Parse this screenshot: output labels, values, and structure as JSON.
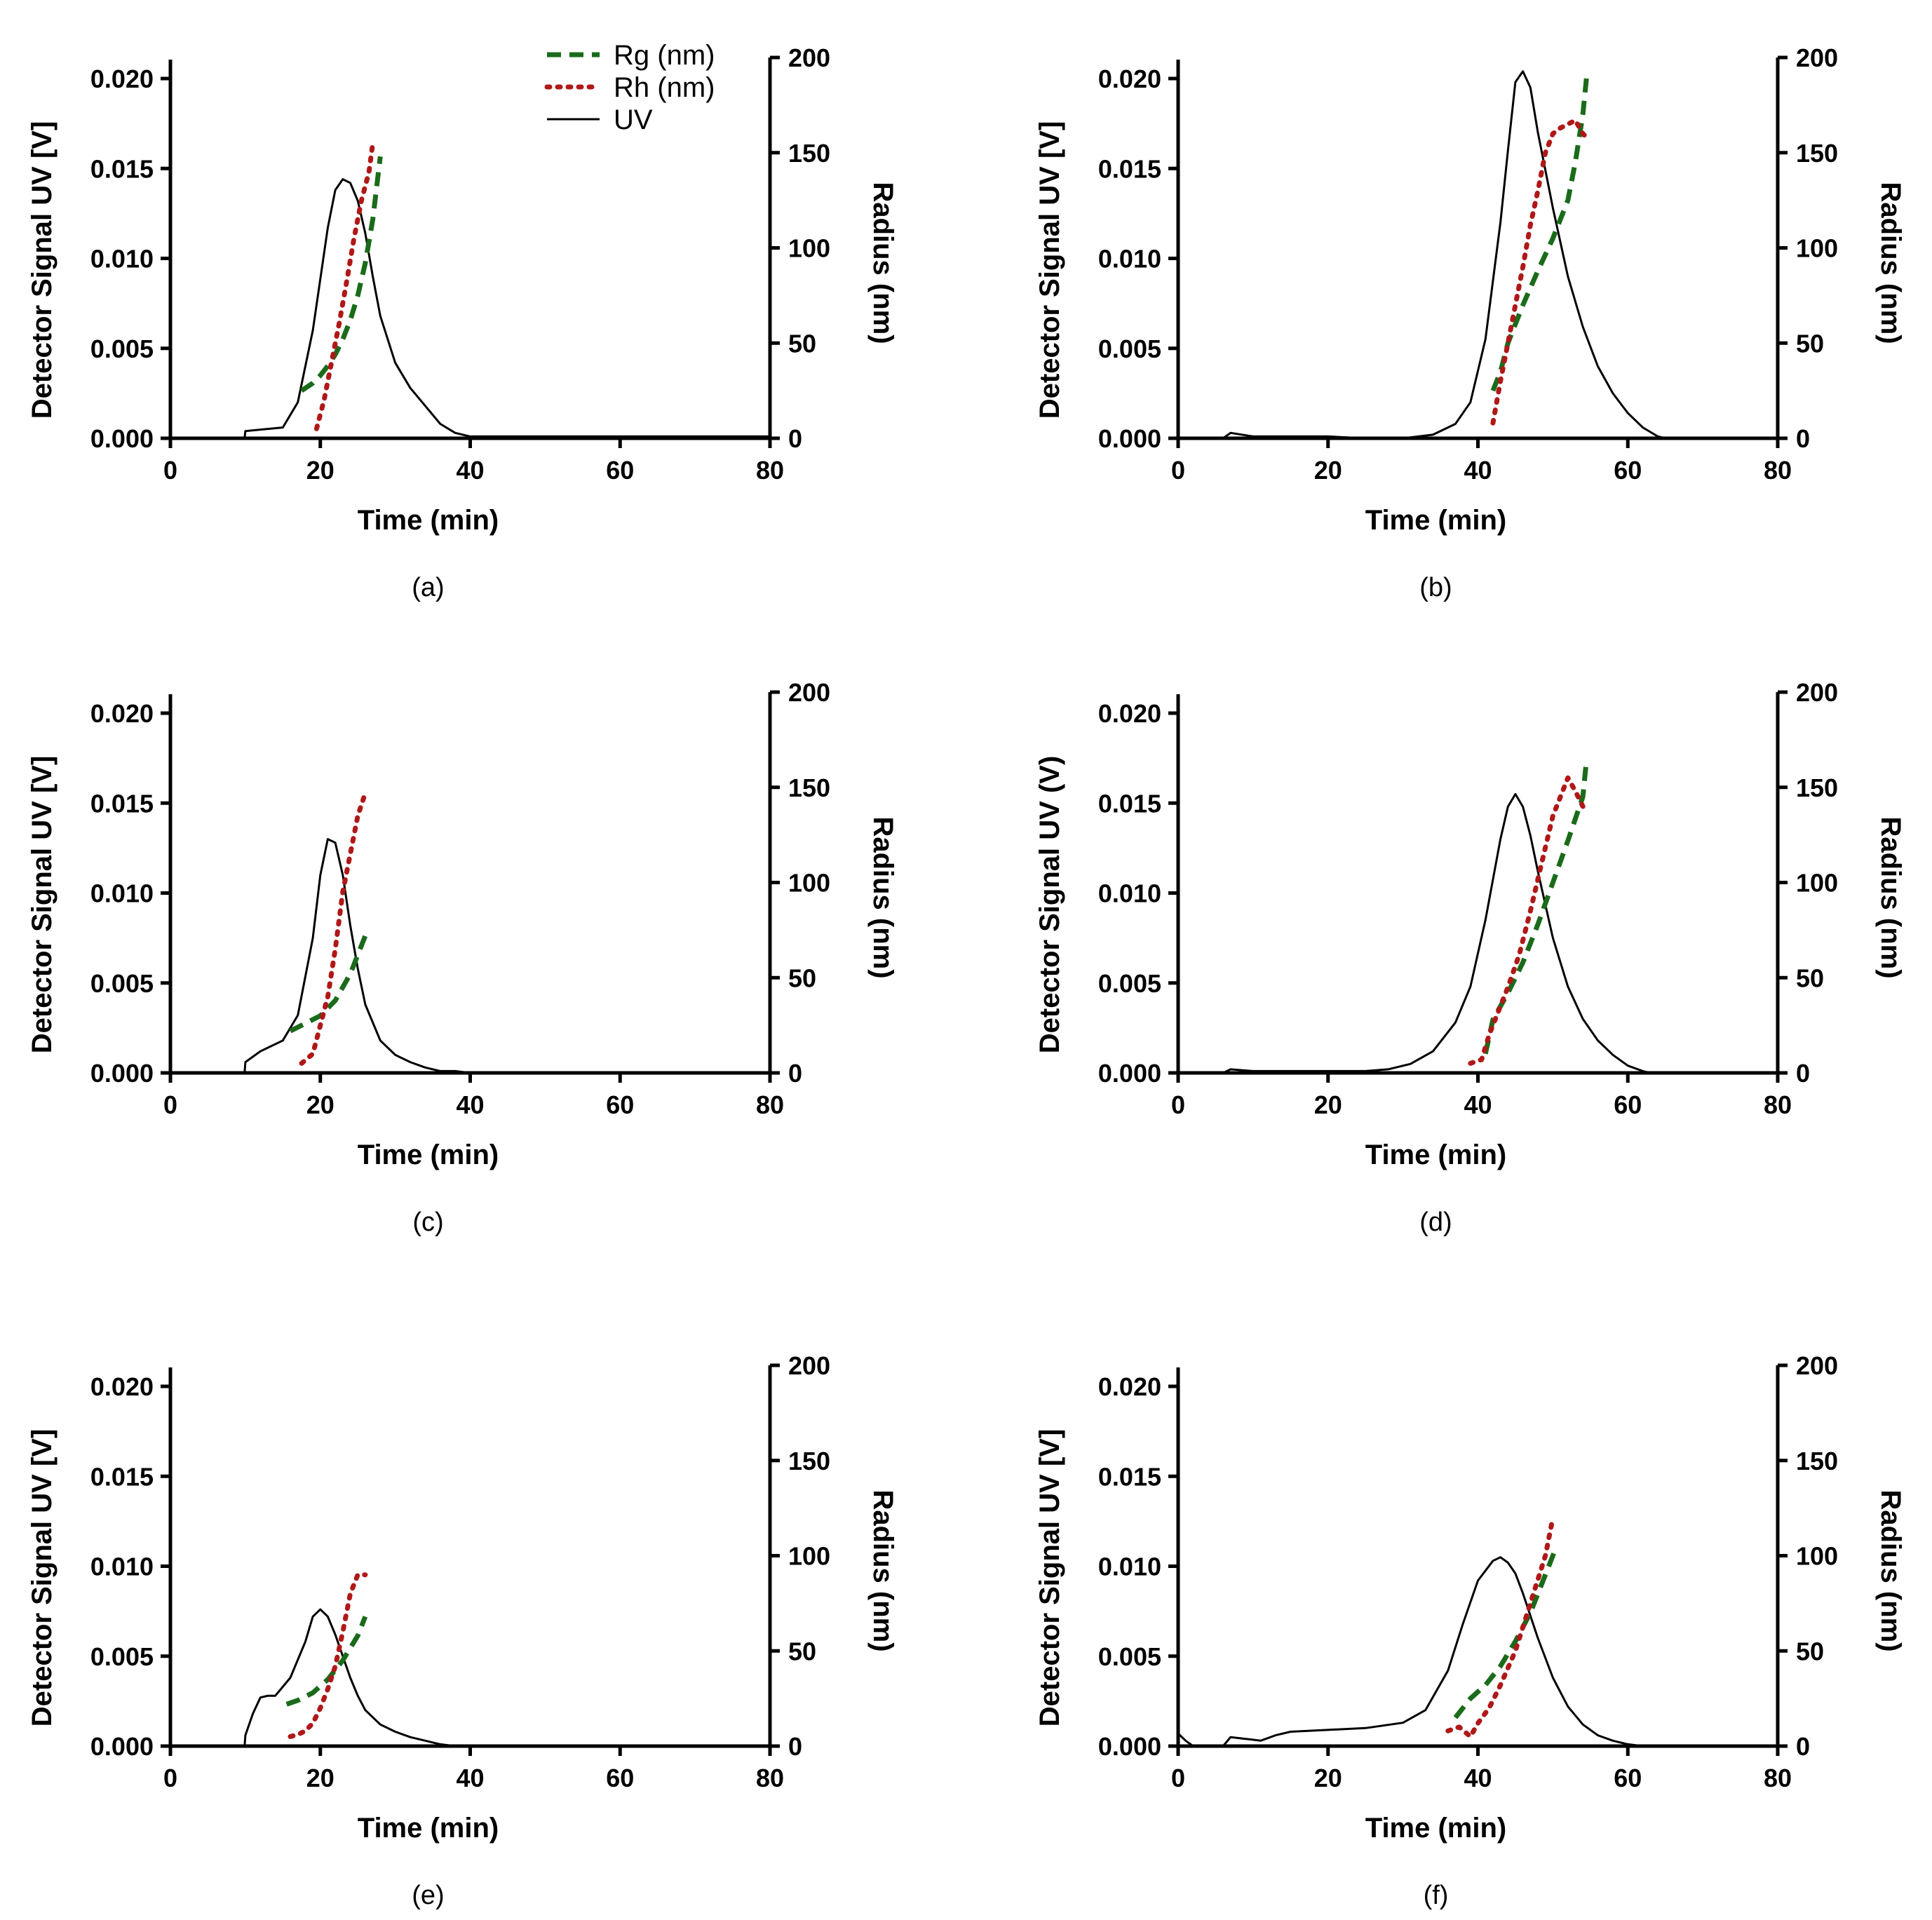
{
  "legend": [
    {
      "label": "Rg (nm)",
      "color": "#1a6b1a",
      "style": "dashed"
    },
    {
      "label": "Rh (nm)",
      "color": "#b01818",
      "style": "dotted"
    },
    {
      "label": "UV",
      "color": "#000000",
      "style": "solid"
    }
  ],
  "chart_data": [
    {
      "type": "line",
      "panel_label": "(a)",
      "xlabel": "Time (min)",
      "ylabel": "Detector Signal UV [V]",
      "y2label": "Radius (nm)",
      "xlim": [
        0,
        80
      ],
      "ylim": [
        0,
        0.021
      ],
      "y2lim": [
        0,
        200
      ],
      "xticks": [
        "0",
        "20",
        "40",
        "60",
        "80"
      ],
      "yticks": [
        "0.000",
        "0.005",
        "0.010",
        "0.015",
        "0.020"
      ],
      "y2ticks": [
        "0",
        "50",
        "100",
        "150",
        "200"
      ],
      "series": [
        {
          "name": "UV",
          "axis": "left",
          "x": [
            0,
            9.9,
            10,
            15,
            17,
            19,
            21,
            22,
            23,
            24,
            25,
            26,
            27,
            28,
            30,
            32,
            34,
            36,
            38,
            40,
            50,
            80
          ],
          "y": [
            0,
            0,
            0.0004,
            0.0006,
            0.002,
            0.006,
            0.0117,
            0.0138,
            0.0144,
            0.0142,
            0.0132,
            0.0114,
            0.009,
            0.0068,
            0.0042,
            0.0028,
            0.0018,
            0.0008,
            0.0003,
            0.0001,
            0.0001,
            0.0001
          ]
        },
        {
          "name": "Rg (nm)",
          "axis": "right",
          "x": [
            17.5,
            19,
            20,
            21,
            22,
            23,
            24,
            25,
            26,
            27,
            28
          ],
          "y": [
            25,
            29,
            33,
            38,
            44,
            52,
            62,
            75,
            92,
            115,
            148
          ]
        },
        {
          "name": "Rh (nm)",
          "axis": "right",
          "x": [
            19.5,
            20.5,
            21.5,
            22.5,
            23.5,
            24.5,
            25.5,
            26.5,
            27
          ],
          "y": [
            5,
            20,
            40,
            60,
            82,
            105,
            125,
            140,
            155
          ]
        }
      ]
    },
    {
      "type": "line",
      "panel_label": "(b)",
      "xlabel": "Time (min)",
      "ylabel": "Detector Signal UV [V]",
      "y2label": "Radius (nm)",
      "xlim": [
        0,
        80
      ],
      "ylim": [
        0,
        0.021
      ],
      "y2lim": [
        0,
        200
      ],
      "xticks": [
        "0",
        "20",
        "40",
        "60",
        "80"
      ],
      "yticks": [
        "0.000",
        "0.005",
        "0.010",
        "0.015",
        "0.020"
      ],
      "y2ticks": [
        "0",
        "50",
        "100",
        "150",
        "200"
      ],
      "series": [
        {
          "name": "UV",
          "axis": "left",
          "x": [
            0,
            6,
            7,
            10,
            15,
            20,
            25,
            30,
            34,
            37,
            39,
            41,
            43,
            44,
            45,
            46,
            47,
            48,
            50,
            52,
            54,
            56,
            58,
            60,
            62,
            64,
            65,
            80
          ],
          "y": [
            0,
            0,
            0.0003,
            0.0001,
            0.0001,
            0.0001,
            0,
            0,
            0.0002,
            0.0008,
            0.002,
            0.0055,
            0.012,
            0.016,
            0.0198,
            0.0204,
            0.0195,
            0.017,
            0.0128,
            0.009,
            0.0062,
            0.004,
            0.0025,
            0.0014,
            0.0006,
            0.0001,
            0,
            0
          ]
        },
        {
          "name": "Rg (nm)",
          "axis": "right",
          "x": [
            42,
            43,
            44,
            46,
            48,
            50,
            52,
            53,
            54,
            54.5
          ],
          "y": [
            25,
            35,
            50,
            70,
            88,
            105,
            125,
            145,
            170,
            190
          ]
        },
        {
          "name": "Rh (nm)",
          "axis": "right",
          "x": [
            42,
            43,
            44,
            45,
            46,
            47,
            48,
            49,
            50,
            51,
            52,
            53,
            54,
            54.5
          ],
          "y": [
            8,
            30,
            50,
            70,
            90,
            112,
            130,
            150,
            160,
            163,
            165,
            167,
            160,
            158
          ]
        }
      ]
    },
    {
      "type": "line",
      "panel_label": "(c)",
      "xlabel": "Time (min)",
      "ylabel": "Detector Signal UV [V]",
      "y2label": "Radius (nm)",
      "xlim": [
        0,
        80
      ],
      "ylim": [
        0,
        0.021
      ],
      "y2lim": [
        0,
        200
      ],
      "xticks": [
        "0",
        "20",
        "40",
        "60",
        "80"
      ],
      "yticks": [
        "0.000",
        "0.005",
        "0.010",
        "0.015",
        "0.020"
      ],
      "y2ticks": [
        "0",
        "50",
        "100",
        "150",
        "200"
      ],
      "series": [
        {
          "name": "UV",
          "axis": "left",
          "x": [
            0,
            9.9,
            10,
            12,
            15,
            17,
            19,
            20,
            21,
            22,
            23,
            24,
            25,
            26,
            28,
            30,
            32,
            34,
            36,
            38,
            40,
            60,
            80
          ],
          "y": [
            0,
            0,
            0.0006,
            0.0012,
            0.0018,
            0.0032,
            0.0075,
            0.011,
            0.013,
            0.0128,
            0.011,
            0.0082,
            0.0058,
            0.0038,
            0.0018,
            0.001,
            0.0006,
            0.0003,
            0.0001,
            0.0001,
            0,
            0,
            0
          ]
        },
        {
          "name": "Rg (nm)",
          "axis": "right",
          "x": [
            16,
            18,
            20,
            22,
            24,
            25,
            26
          ],
          "y": [
            22,
            26,
            30,
            38,
            52,
            62,
            72
          ]
        },
        {
          "name": "Rh (nm)",
          "axis": "right",
          "x": [
            17.5,
            19,
            20,
            21,
            22,
            23,
            24,
            25,
            26
          ],
          "y": [
            5,
            10,
            25,
            40,
            65,
            95,
            115,
            135,
            147
          ]
        }
      ]
    },
    {
      "type": "line",
      "panel_label": "(d)",
      "xlabel": "Time (min)",
      "ylabel": "Detector Signal UV (V)",
      "y2label": "Radius (nm)",
      "xlim": [
        0,
        80
      ],
      "ylim": [
        0,
        0.021
      ],
      "y2lim": [
        0,
        200
      ],
      "xticks": [
        "0",
        "20",
        "40",
        "60",
        "80"
      ],
      "yticks": [
        "0.000",
        "0.005",
        "0.010",
        "0.015",
        "0.020"
      ],
      "y2ticks": [
        "0",
        "50",
        "100",
        "150",
        "200"
      ],
      "series": [
        {
          "name": "UV",
          "axis": "left",
          "x": [
            0,
            6,
            7,
            10,
            15,
            20,
            25,
            28,
            31,
            34,
            37,
            39,
            41,
            43,
            44,
            45,
            46,
            47,
            48,
            50,
            52,
            54,
            56,
            58,
            60,
            62,
            63,
            80
          ],
          "y": [
            0,
            0,
            0.0002,
            0.0001,
            0.0001,
            0.0001,
            0.0001,
            0.0002,
            0.0005,
            0.0012,
            0.0028,
            0.0048,
            0.0085,
            0.013,
            0.0148,
            0.0155,
            0.0148,
            0.0132,
            0.0112,
            0.0075,
            0.0048,
            0.003,
            0.0018,
            0.001,
            0.0004,
            0.0001,
            0,
            0
          ]
        },
        {
          "name": "Rg (nm)",
          "axis": "right",
          "x": [
            41,
            42,
            44,
            46,
            48,
            50,
            52,
            54,
            54.5
          ],
          "y": [
            10,
            28,
            42,
            58,
            78,
            100,
            122,
            145,
            165
          ]
        },
        {
          "name": "Rh (nm)",
          "axis": "right",
          "x": [
            39,
            40.5,
            41.5,
            42.5,
            44,
            45.5,
            47,
            48.5,
            50,
            51,
            52,
            53,
            54,
            54.5
          ],
          "y": [
            5,
            7,
            20,
            30,
            45,
            62,
            85,
            110,
            135,
            145,
            155,
            148,
            140,
            138
          ]
        }
      ]
    },
    {
      "type": "line",
      "panel_label": "(e)",
      "xlabel": "Time (min)",
      "ylabel": "Detector Signal UV [V]",
      "y2label": "Radius (nm)",
      "xlim": [
        0,
        80
      ],
      "ylim": [
        0,
        0.021
      ],
      "y2lim": [
        0,
        200
      ],
      "xticks": [
        "0",
        "20",
        "40",
        "60",
        "80"
      ],
      "yticks": [
        "0.000",
        "0.005",
        "0.010",
        "0.015",
        "0.020"
      ],
      "y2ticks": [
        "0",
        "50",
        "100",
        "150",
        "200"
      ],
      "series": [
        {
          "name": "UV",
          "axis": "left",
          "x": [
            0,
            9.9,
            10,
            11,
            12,
            13,
            14,
            16,
            18,
            19,
            20,
            21,
            22,
            23,
            24,
            25,
            26,
            28,
            30,
            32,
            34,
            36,
            38,
            40,
            80
          ],
          "y": [
            0,
            0,
            0.0006,
            0.0018,
            0.0027,
            0.0028,
            0.0028,
            0.0038,
            0.0058,
            0.0072,
            0.0076,
            0.0072,
            0.0062,
            0.005,
            0.0038,
            0.0028,
            0.002,
            0.0012,
            0.0008,
            0.0005,
            0.0003,
            0.0001,
            0,
            0,
            0
          ]
        },
        {
          "name": "Rg (nm)",
          "axis": "right",
          "x": [
            15.5,
            17,
            19,
            21,
            23,
            25,
            26
          ],
          "y": [
            22,
            24,
            28,
            35,
            45,
            58,
            68
          ]
        },
        {
          "name": "Rh (nm)",
          "axis": "right",
          "x": [
            16,
            17,
            18,
            19,
            20,
            21,
            22,
            23,
            24,
            25,
            26
          ],
          "y": [
            5,
            6,
            8,
            12,
            20,
            30,
            42,
            60,
            80,
            90,
            90
          ]
        }
      ]
    },
    {
      "type": "line",
      "panel_label": "(f)",
      "xlabel": "Time (min)",
      "ylabel": "Detector Signal UV [V]",
      "y2label": "Radius (nm)",
      "xlim": [
        0,
        80
      ],
      "ylim": [
        0,
        0.021
      ],
      "y2lim": [
        0,
        200
      ],
      "xticks": [
        "0",
        "20",
        "40",
        "60",
        "80"
      ],
      "yticks": [
        "0.000",
        "0.005",
        "0.010",
        "0.015",
        "0.020"
      ],
      "y2ticks": [
        "0",
        "50",
        "100",
        "150",
        "200"
      ],
      "series": [
        {
          "name": "UV",
          "axis": "left",
          "x": [
            0,
            1,
            2,
            6,
            7,
            9,
            11,
            13,
            15,
            20,
            25,
            30,
            33,
            36,
            38,
            40,
            42,
            43,
            44,
            45,
            46,
            48,
            50,
            52,
            54,
            56,
            58,
            60,
            62,
            80
          ],
          "y": [
            0.0007,
            0.0003,
            0,
            0,
            0.0005,
            0.0004,
            0.0003,
            0.0006,
            0.0008,
            0.0009,
            0.001,
            0.0013,
            0.002,
            0.0042,
            0.0068,
            0.0092,
            0.0103,
            0.0105,
            0.0102,
            0.0096,
            0.0085,
            0.006,
            0.0038,
            0.0022,
            0.0012,
            0.0006,
            0.0003,
            0.0001,
            0,
            0
          ]
        },
        {
          "name": "Rg (nm)",
          "axis": "right",
          "x": [
            37,
            39,
            41,
            43,
            45,
            47,
            49,
            50.5
          ],
          "y": [
            15,
            25,
            32,
            42,
            55,
            70,
            90,
            105
          ]
        },
        {
          "name": "Rh (nm)",
          "axis": "right",
          "x": [
            36,
            37.5,
            39,
            40,
            41.5,
            43,
            45,
            47,
            49,
            50
          ],
          "y": [
            8,
            10,
            5,
            12,
            20,
            32,
            50,
            75,
            100,
            120
          ]
        }
      ]
    }
  ]
}
